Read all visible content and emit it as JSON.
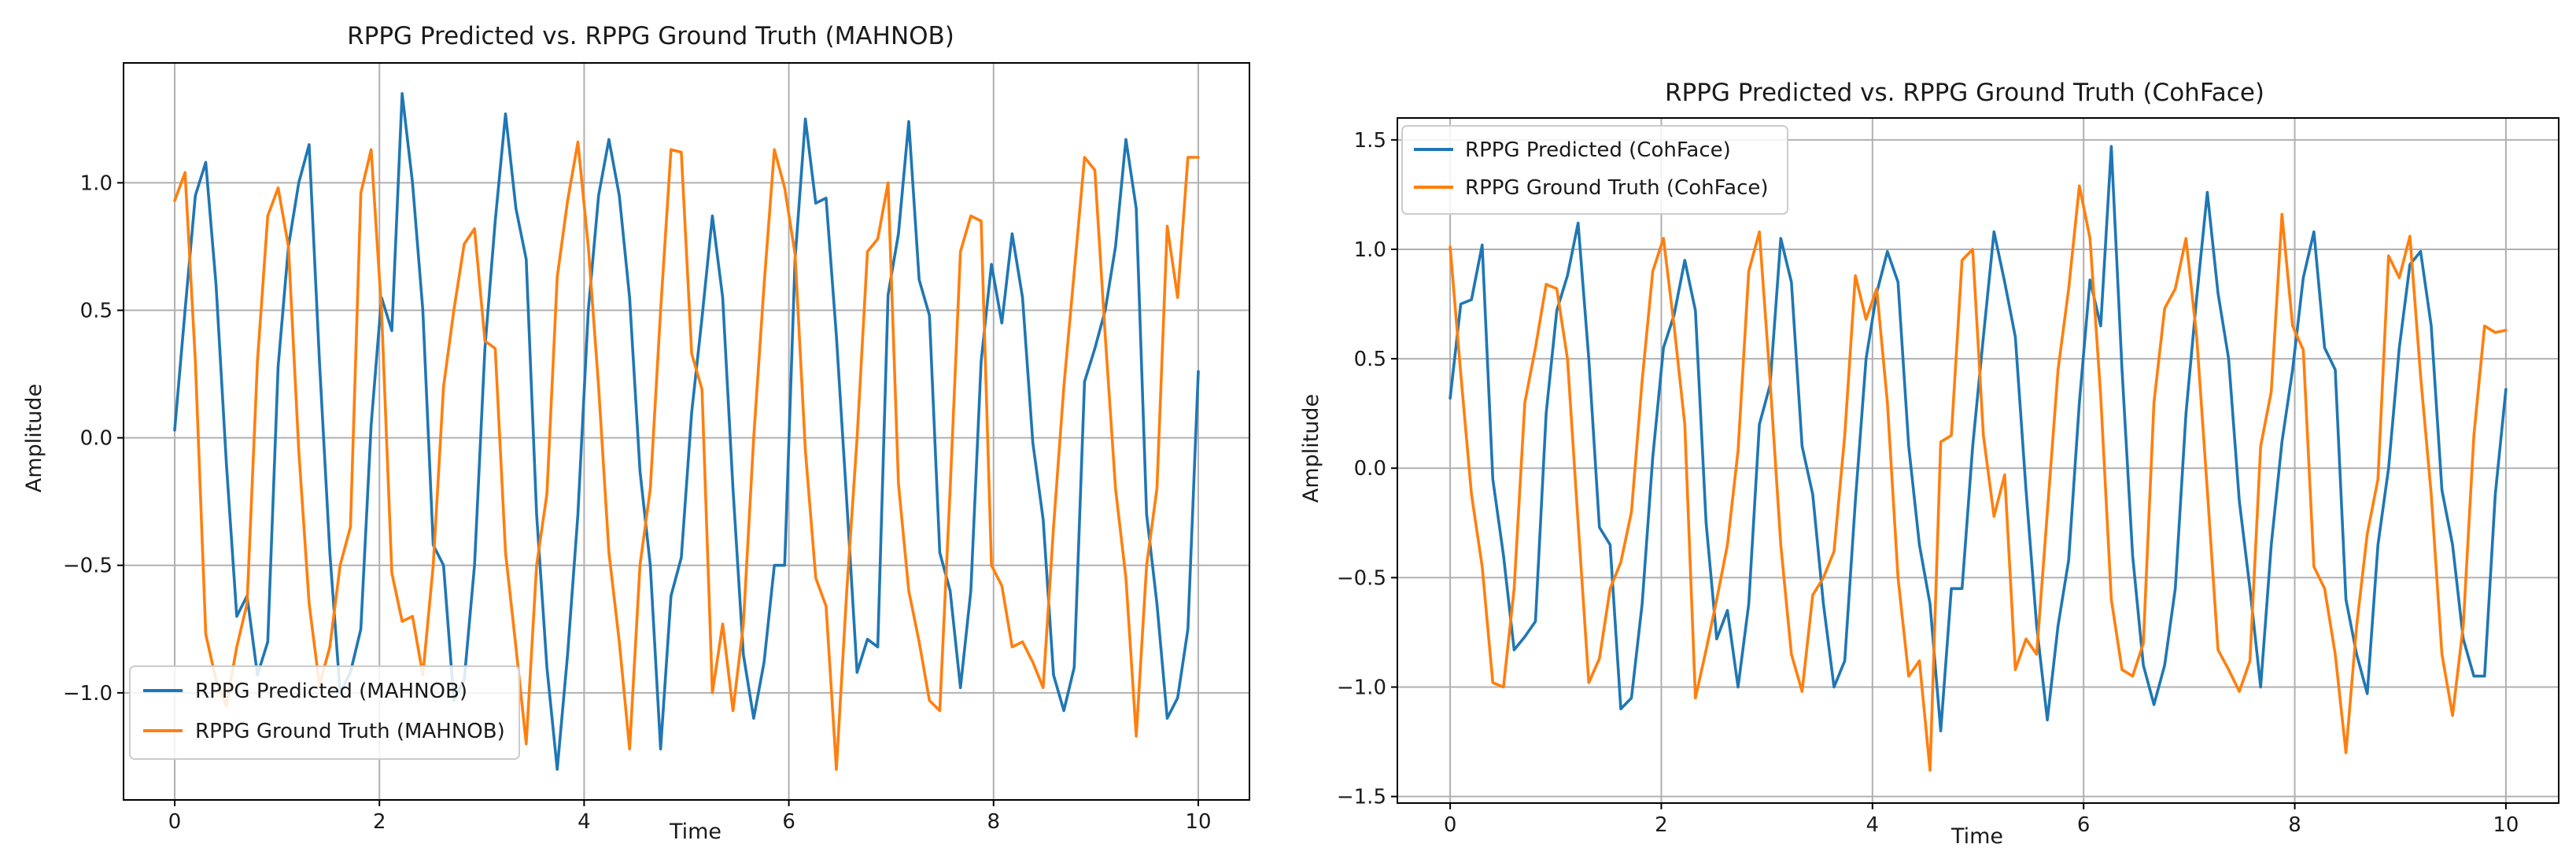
{
  "chart_data": [
    {
      "type": "line",
      "title": "RPPG Predicted vs. RPPG Ground Truth (MAHNOB)",
      "xlabel": "Time",
      "ylabel": "Amplitude",
      "xlim": [
        -0.5,
        10.5
      ],
      "ylim": [
        -1.42,
        1.47
      ],
      "xticks": [
        0,
        2,
        4,
        6,
        8,
        10
      ],
      "xtick_labels": [
        "0",
        "2",
        "4",
        "6",
        "8",
        "10"
      ],
      "yticks": [
        -1.0,
        -0.5,
        0.0,
        0.5,
        1.0
      ],
      "ytick_labels": [
        "−1.0",
        "−0.5",
        "0.0",
        "0.5",
        "1.0"
      ],
      "grid": true,
      "legend_loc": "lower-left",
      "x": {
        "start": 0,
        "stop": 10,
        "count": 100
      },
      "series": [
        {
          "name": "RPPG Predicted (MAHNOB)",
          "color": "#1f77b4",
          "values": [
            0.03,
            0.5,
            0.95,
            1.08,
            0.6,
            -0.1,
            -0.7,
            -0.62,
            -0.93,
            -0.8,
            0.28,
            0.75,
            1.0,
            1.15,
            0.3,
            -0.45,
            -1.0,
            -0.92,
            -0.75,
            0.05,
            0.55,
            0.42,
            1.35,
            1.0,
            0.5,
            -0.42,
            -0.5,
            -1.03,
            -0.95,
            -0.5,
            0.35,
            0.85,
            1.27,
            0.9,
            0.7,
            -0.3,
            -0.9,
            -1.3,
            -0.85,
            -0.3,
            0.5,
            0.95,
            1.17,
            0.95,
            0.55,
            -0.13,
            -0.5,
            -1.22,
            -0.62,
            -0.47,
            0.1,
            0.47,
            0.87,
            0.55,
            -0.2,
            -0.85,
            -1.1,
            -0.88,
            -0.5,
            -0.5,
            0.7,
            1.25,
            0.92,
            0.94,
            0.4,
            -0.25,
            -0.92,
            -0.79,
            -0.82,
            0.56,
            0.8,
            1.24,
            0.62,
            0.48,
            -0.45,
            -0.6,
            -0.98,
            -0.6,
            0.3,
            0.68,
            0.45,
            0.8,
            0.55,
            -0.02,
            -0.32,
            -0.93,
            -1.07,
            -0.9,
            0.22,
            0.35,
            0.5,
            0.75,
            1.17,
            0.9,
            -0.3,
            -0.65,
            -1.1,
            -1.02,
            -0.75,
            0.26
          ]
        },
        {
          "name": "RPPG Ground Truth (MAHNOB)",
          "color": "#ff7f0e",
          "values": [
            0.93,
            1.04,
            0.3,
            -0.77,
            -0.95,
            -1.05,
            -0.82,
            -0.65,
            0.3,
            0.87,
            0.98,
            0.75,
            -0.05,
            -0.65,
            -0.97,
            -0.82,
            -0.5,
            -0.35,
            0.96,
            1.13,
            0.5,
            -0.53,
            -0.72,
            -0.7,
            -0.93,
            -0.5,
            0.2,
            0.5,
            0.76,
            0.82,
            0.38,
            0.35,
            -0.45,
            -0.82,
            -1.2,
            -0.5,
            -0.22,
            0.63,
            0.93,
            1.16,
            0.75,
            0.2,
            -0.45,
            -0.8,
            -1.22,
            -0.5,
            -0.2,
            0.5,
            1.13,
            1.12,
            0.33,
            0.19,
            -1.0,
            -0.73,
            -1.07,
            -0.73,
            0.0,
            0.6,
            1.13,
            0.98,
            0.72,
            -0.05,
            -0.55,
            -0.66,
            -1.3,
            -0.6,
            0.0,
            0.73,
            0.78,
            1.0,
            -0.18,
            -0.6,
            -0.8,
            -1.03,
            -1.07,
            -0.2,
            0.73,
            0.87,
            0.85,
            -0.5,
            -0.58,
            -0.82,
            -0.8,
            -0.88,
            -0.98,
            -0.35,
            0.2,
            0.65,
            1.1,
            1.05,
            0.4,
            -0.2,
            -0.55,
            -1.17,
            -0.5,
            -0.2,
            0.83,
            0.55,
            1.1,
            1.1
          ]
        }
      ]
    },
    {
      "type": "line",
      "title": "RPPG Predicted vs. RPPG Ground Truth (CohFace)",
      "xlabel": "Time",
      "ylabel": "Amplitude",
      "xlim": [
        -0.5,
        10.5
      ],
      "ylim": [
        -1.53,
        1.6
      ],
      "xticks": [
        0,
        2,
        4,
        6,
        8,
        10
      ],
      "xtick_labels": [
        "0",
        "2",
        "4",
        "6",
        "8",
        "10"
      ],
      "yticks": [
        -1.5,
        -1.0,
        -0.5,
        0.0,
        0.5,
        1.0,
        1.5
      ],
      "ytick_labels": [
        "−1.5",
        "−1.0",
        "−0.5",
        "0.0",
        "0.5",
        "1.0",
        "1.5"
      ],
      "grid": true,
      "legend_loc": "upper-left",
      "x": {
        "start": 0,
        "stop": 10,
        "count": 100
      },
      "series": [
        {
          "name": "RPPG Predicted (CohFace)",
          "color": "#1f77b4",
          "values": [
            0.32,
            0.75,
            0.77,
            1.02,
            -0.05,
            -0.4,
            -0.83,
            -0.77,
            -0.7,
            0.25,
            0.72,
            0.88,
            1.12,
            0.5,
            -0.27,
            -0.35,
            -1.1,
            -1.05,
            -0.62,
            0.05,
            0.55,
            0.7,
            0.95,
            0.72,
            -0.25,
            -0.78,
            -0.65,
            -1.0,
            -0.62,
            0.2,
            0.38,
            1.05,
            0.85,
            0.1,
            -0.12,
            -0.62,
            -1.0,
            -0.88,
            -0.15,
            0.5,
            0.8,
            0.99,
            0.85,
            0.1,
            -0.35,
            -0.62,
            -1.2,
            -0.55,
            -0.55,
            0.1,
            0.6,
            1.08,
            0.85,
            0.6,
            -0.1,
            -0.72,
            -1.15,
            -0.72,
            -0.42,
            0.3,
            0.86,
            0.65,
            1.47,
            0.45,
            -0.4,
            -0.9,
            -1.08,
            -0.9,
            -0.55,
            0.25,
            0.78,
            1.26,
            0.8,
            0.5,
            -0.15,
            -0.55,
            -1.0,
            -0.35,
            0.12,
            0.45,
            0.87,
            1.08,
            0.55,
            0.45,
            -0.6,
            -0.85,
            -1.03,
            -0.35,
            0.0,
            0.55,
            0.93,
            0.99,
            0.65,
            -0.1,
            -0.35,
            -0.78,
            -0.95,
            -0.95,
            -0.12,
            0.36
          ]
        },
        {
          "name": "RPPG Ground Truth (CohFace)",
          "color": "#ff7f0e",
          "values": [
            1.01,
            0.43,
            -0.12,
            -0.45,
            -0.98,
            -1.0,
            -0.55,
            0.3,
            0.55,
            0.84,
            0.82,
            0.5,
            -0.25,
            -0.98,
            -0.87,
            -0.55,
            -0.43,
            -0.2,
            0.4,
            0.9,
            1.05,
            0.65,
            0.2,
            -1.05,
            -0.83,
            -0.6,
            -0.35,
            0.08,
            0.9,
            1.08,
            0.4,
            -0.35,
            -0.85,
            -1.02,
            -0.58,
            -0.5,
            -0.38,
            0.15,
            0.88,
            0.68,
            0.82,
            0.3,
            -0.5,
            -0.95,
            -0.88,
            -1.38,
            0.12,
            0.15,
            0.95,
            1.0,
            0.15,
            -0.22,
            -0.03,
            -0.92,
            -0.78,
            -0.85,
            -0.2,
            0.45,
            0.82,
            1.29,
            1.05,
            0.33,
            -0.6,
            -0.92,
            -0.95,
            -0.8,
            0.3,
            0.73,
            0.82,
            1.05,
            0.6,
            -0.1,
            -0.83,
            -0.92,
            -1.02,
            -0.88,
            0.1,
            0.35,
            1.16,
            0.65,
            0.54,
            -0.45,
            -0.55,
            -0.85,
            -1.3,
            -0.72,
            -0.3,
            -0.05,
            0.97,
            0.87,
            1.06,
            0.42,
            -0.12,
            -0.85,
            -1.13,
            -0.72,
            0.15,
            0.65,
            0.62,
            0.63
          ]
        }
      ]
    }
  ]
}
